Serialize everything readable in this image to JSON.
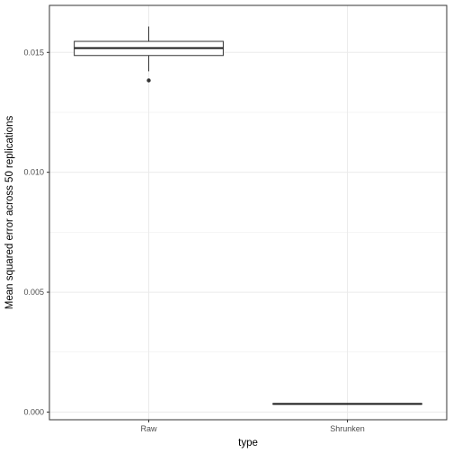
{
  "chart_data": {
    "type": "boxplot",
    "title": "",
    "xlabel": "type",
    "ylabel": "Mean squared error across 50 replications",
    "categories": [
      "Raw",
      "Shrunken"
    ],
    "ylim": [
      -0.00032,
      0.01696
    ],
    "yticks": [
      0.0,
      0.005,
      0.01,
      0.015
    ],
    "ytick_labels": [
      "0.000",
      "0.005",
      "0.010",
      "0.015"
    ],
    "grid": true,
    "legend": "none",
    "boxes": [
      {
        "category": "Raw",
        "whisker_low": 0.01421,
        "q1": 0.01487,
        "median": 0.01518,
        "q3": 0.01546,
        "whisker_high": 0.01608,
        "outliers": [
          0.01383
        ]
      },
      {
        "category": "Shrunken",
        "whisker_low": 0.00033,
        "q1": 0.00033,
        "median": 0.00034,
        "q3": 0.00035,
        "whisker_high": 0.00035,
        "outliers": []
      }
    ]
  }
}
